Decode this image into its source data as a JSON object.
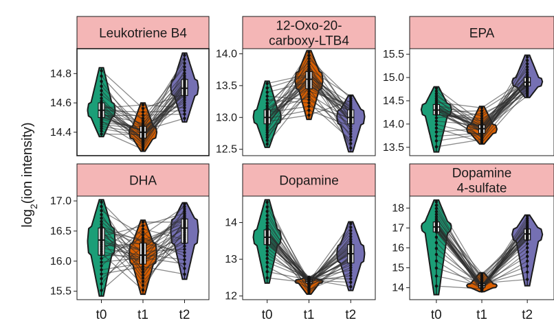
{
  "panel_letter": "",
  "chart_data": {
    "type": "violin",
    "ylabel": "log2(ion intensity)",
    "ylabel_base": "log",
    "ylabel_sub": "2",
    "ylabel_rest": "(ion intensity)",
    "x_categories": [
      "t0",
      "t1",
      "t2"
    ],
    "colors": {
      "t0": "#1b9e77",
      "t1": "#d95f02",
      "t2": "#7570b3",
      "strip": "#f4b6b6"
    },
    "facets": [
      {
        "title": [
          "Leukotriene B4"
        ],
        "ylim": [
          14.24,
          14.97
        ],
        "yticks": [
          14.4,
          14.6,
          14.8
        ],
        "ytick_labels": [
          "14.4",
          "14.6",
          "14.8"
        ],
        "groups": [
          {
            "x": "t0",
            "min": 14.37,
            "q1": 14.5,
            "median": 14.55,
            "q3": 14.6,
            "max": 14.84
          },
          {
            "x": "t1",
            "min": 14.27,
            "q1": 14.36,
            "median": 14.4,
            "q3": 14.44,
            "max": 14.6
          },
          {
            "x": "t2",
            "min": 14.47,
            "q1": 14.65,
            "median": 14.7,
            "q3": 14.76,
            "max": 14.94
          }
        ]
      },
      {
        "title": [
          "12-Oxo-20-",
          "carboxy-LTB4"
        ],
        "ylim": [
          12.4,
          14.08
        ],
        "yticks": [
          12.5,
          13.0,
          13.5,
          14.0
        ],
        "ytick_labels": [
          "12.5",
          "13.0",
          "13.5",
          "14.0"
        ],
        "groups": [
          {
            "x": "t0",
            "min": 12.53,
            "q1": 12.9,
            "median": 13.0,
            "q3": 13.12,
            "max": 13.57
          },
          {
            "x": "t1",
            "min": 12.97,
            "q1": 13.45,
            "median": 13.6,
            "q3": 13.72,
            "max": 14.05
          },
          {
            "x": "t2",
            "min": 12.46,
            "q1": 12.9,
            "median": 13.0,
            "q3": 13.12,
            "max": 13.35
          }
        ]
      },
      {
        "title": [
          "EPA"
        ],
        "ylim": [
          13.32,
          15.62
        ],
        "yticks": [
          13.5,
          14.0,
          14.5,
          15.0,
          15.5
        ],
        "ytick_labels": [
          "13.5",
          "14.0",
          "14.5",
          "15.0",
          "15.5"
        ],
        "groups": [
          {
            "x": "t0",
            "min": 13.4,
            "q1": 14.2,
            "median": 14.3,
            "q3": 14.42,
            "max": 14.8
          },
          {
            "x": "t1",
            "min": 13.57,
            "q1": 13.8,
            "median": 13.9,
            "q3": 13.98,
            "max": 14.38
          },
          {
            "x": "t2",
            "min": 14.57,
            "q1": 14.82,
            "median": 14.9,
            "q3": 15.0,
            "max": 15.48
          }
        ]
      },
      {
        "title": [
          "DHA"
        ],
        "ylim": [
          15.36,
          17.08
        ],
        "yticks": [
          15.5,
          16.0,
          16.5,
          17.0
        ],
        "ytick_labels": [
          "15.5",
          "16.0",
          "16.5",
          "17.0"
        ],
        "groups": [
          {
            "x": "t0",
            "min": 15.42,
            "q1": 16.1,
            "median": 16.35,
            "q3": 16.55,
            "max": 17.02
          },
          {
            "x": "t1",
            "min": 15.45,
            "q1": 15.95,
            "median": 16.1,
            "q3": 16.3,
            "max": 16.68
          },
          {
            "x": "t2",
            "min": 15.7,
            "q1": 16.3,
            "median": 16.55,
            "q3": 16.7,
            "max": 16.97
          }
        ]
      },
      {
        "title": [
          "Dopamine"
        ],
        "ylim": [
          11.9,
          14.72
        ],
        "yticks": [
          12,
          13,
          14
        ],
        "ytick_labels": [
          "12",
          "13",
          "14"
        ],
        "groups": [
          {
            "x": "t0",
            "min": 12.35,
            "q1": 13.4,
            "median": 13.6,
            "q3": 13.8,
            "max": 14.62
          },
          {
            "x": "t1",
            "min": 12.05,
            "q1": 12.35,
            "median": 12.4,
            "q3": 12.44,
            "max": 12.52
          },
          {
            "x": "t2",
            "min": 12.15,
            "q1": 12.9,
            "median": 13.15,
            "q3": 13.4,
            "max": 14.02
          }
        ]
      },
      {
        "title": [
          "Dopamine",
          "4-sulfate"
        ],
        "ylim": [
          13.4,
          18.6
        ],
        "yticks": [
          14,
          15,
          16,
          17,
          18
        ],
        "ytick_labels": [
          "14",
          "15",
          "16",
          "17",
          "18"
        ],
        "groups": [
          {
            "x": "t0",
            "min": 13.65,
            "q1": 16.8,
            "median": 17.05,
            "q3": 17.3,
            "max": 18.4
          },
          {
            "x": "t1",
            "min": 13.8,
            "q1": 14.0,
            "median": 14.1,
            "q3": 14.2,
            "max": 14.75
          },
          {
            "x": "t2",
            "min": 14.1,
            "q1": 16.4,
            "median": 16.7,
            "q3": 16.95,
            "max": 17.65
          }
        ]
      }
    ]
  }
}
